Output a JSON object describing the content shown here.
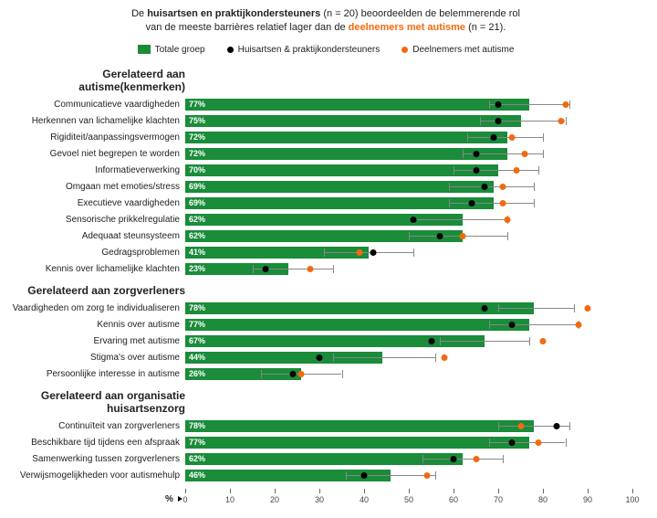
{
  "header": {
    "line1_pre": "De ",
    "line1_bold": "huisartsen en praktijkondersteuners",
    "line1_post": " (n = 20) beoordeelden de belemmerende rol",
    "line2_pre": "van de meeste barrières relatief lager dan de ",
    "line2_bold": "deelnemers met autisme",
    "line2_post": " (n = 21)."
  },
  "legend": {
    "total": "Totale groep",
    "huisarts": "Huisartsen & praktijkondersteuners",
    "deeln": "Deelnemers met autisme"
  },
  "axis": {
    "label": "%",
    "min": 0,
    "max": 100,
    "step": 10
  },
  "colors": {
    "bar": "#1a8c3a",
    "dot_black": "#000000",
    "dot_orange": "#f26a0f",
    "whisker": "#888888"
  },
  "sections": [
    {
      "title": "Gerelateerd aan autisme(kenmerken)",
      "items": [
        {
          "label": "Communicatieve vaardigheden",
          "total": 77,
          "black": 70,
          "orange": 85,
          "wmin": 68,
          "wmax": 86
        },
        {
          "label": "Herkennen van lichamelijke klachten",
          "total": 75,
          "black": 70,
          "orange": 84,
          "wmin": 66,
          "wmax": 85
        },
        {
          "label": "Rigiditeit/aanpassingsvermogen",
          "total": 72,
          "black": 69,
          "orange": 73,
          "wmin": 63,
          "wmax": 80
        },
        {
          "label": "Gevoel niet begrepen te worden",
          "total": 72,
          "black": 65,
          "orange": 76,
          "wmin": 62,
          "wmax": 80
        },
        {
          "label": "Informatieverwerking",
          "total": 70,
          "black": 65,
          "orange": 74,
          "wmin": 60,
          "wmax": 79
        },
        {
          "label": "Omgaan met emoties/stress",
          "total": 69,
          "black": 67,
          "orange": 71,
          "wmin": 59,
          "wmax": 78
        },
        {
          "label": "Executieve vaardigheden",
          "total": 69,
          "black": 64,
          "orange": 71,
          "wmin": 59,
          "wmax": 78
        },
        {
          "label": "Sensorische prikkelregulatie",
          "total": 62,
          "black": 51,
          "orange": 72,
          "wmin": 51,
          "wmax": 72
        },
        {
          "label": "Adequaat steunsysteem",
          "total": 62,
          "black": 57,
          "orange": 62,
          "wmin": 50,
          "wmax": 72
        },
        {
          "label": "Gedragsproblemen",
          "total": 41,
          "black": 42,
          "orange": 39,
          "wmin": 31,
          "wmax": 51
        },
        {
          "label": "Kennis over lichamelijke klachten",
          "total": 23,
          "black": 18,
          "orange": 28,
          "wmin": 15,
          "wmax": 33
        }
      ]
    },
    {
      "title": "Gerelateerd aan zorgverleners",
      "items": [
        {
          "label": "Vaardigheden om zorg te individualiseren",
          "total": 78,
          "black": 67,
          "orange": 90,
          "wmin": 70,
          "wmax": 87
        },
        {
          "label": "Kennis over autisme",
          "total": 77,
          "black": 73,
          "orange": 88,
          "wmin": 68,
          "wmax": 88
        },
        {
          "label": "Ervaring met autisme",
          "total": 67,
          "black": 55,
          "orange": 80,
          "wmin": 57,
          "wmax": 77
        },
        {
          "label": "Stigma's over autisme",
          "total": 44,
          "black": 30,
          "orange": 58,
          "wmin": 33,
          "wmax": 56
        },
        {
          "label": "Persoonlijke interesse in autisme",
          "total": 26,
          "black": 24,
          "orange": 26,
          "wmin": 17,
          "wmax": 35
        }
      ]
    },
    {
      "title": "Gerelateerd aan organisatie huisartsenzorg",
      "items": [
        {
          "label": "Continuïteit van zorgverleners",
          "total": 78,
          "black": 83,
          "orange": 75,
          "wmin": 70,
          "wmax": 86
        },
        {
          "label": "Beschikbare tijd tijdens een afspraak",
          "total": 77,
          "black": 73,
          "orange": 79,
          "wmin": 68,
          "wmax": 85
        },
        {
          "label": "Samenwerking tussen zorgverleners",
          "total": 62,
          "black": 60,
          "orange": 65,
          "wmin": 53,
          "wmax": 71
        },
        {
          "label": "Verwijsmogelijkheden voor autismehulp",
          "total": 46,
          "black": 40,
          "orange": 54,
          "wmin": 36,
          "wmax": 56
        }
      ]
    }
  ]
}
